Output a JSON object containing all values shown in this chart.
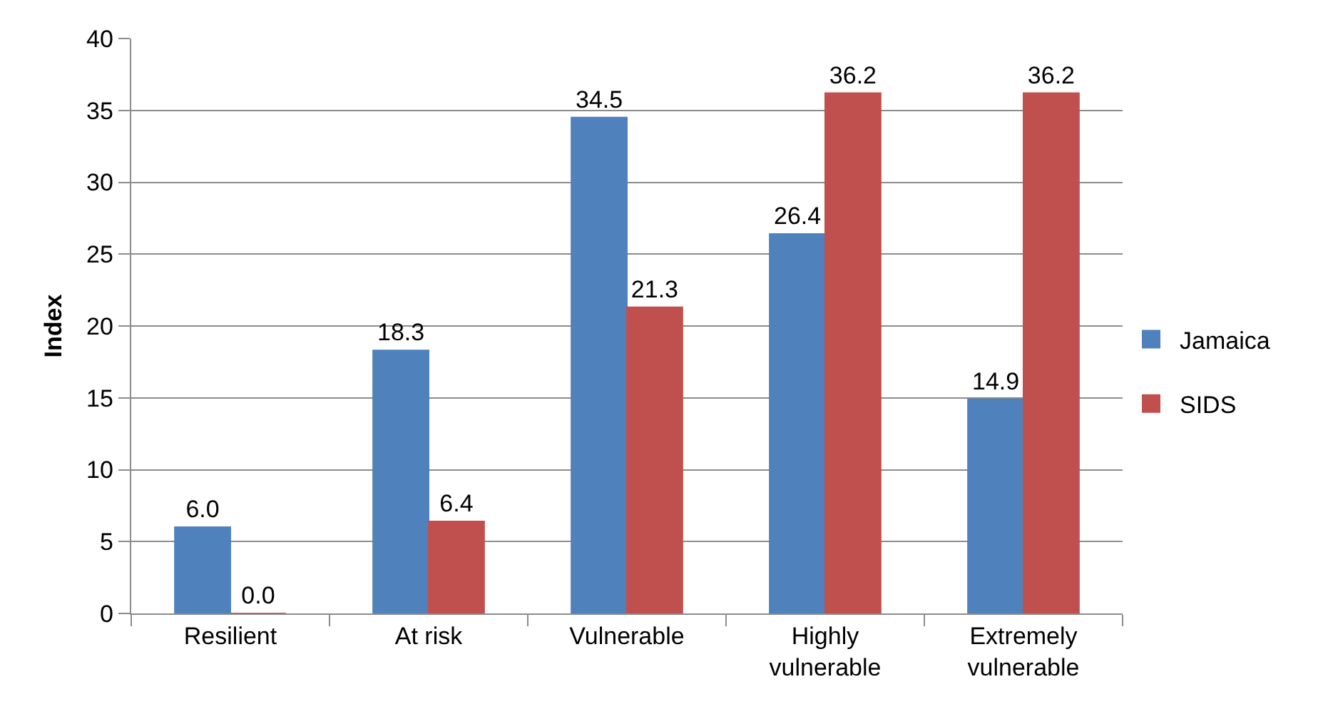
{
  "chart_data": {
    "type": "bar",
    "ylabel": "Index",
    "categories": [
      "Resilient",
      "At risk",
      "Vulnerable",
      "Highly vulnerable",
      "Extremely vulnerable"
    ],
    "series": [
      {
        "name": "Jamaica",
        "color": "#4f81bd",
        "values": [
          6.0,
          18.3,
          34.5,
          26.4,
          14.9
        ],
        "value_labels": [
          "6.0",
          "18.3",
          "34.5",
          "26.4",
          "14.9"
        ]
      },
      {
        "name": "SIDS",
        "color": "#c0504d",
        "values": [
          0.0,
          6.4,
          21.3,
          36.2,
          36.2
        ],
        "value_labels": [
          "0.0",
          "6.4",
          "21.3",
          "36.2",
          "36.2"
        ]
      }
    ],
    "ylim": [
      0,
      40
    ],
    "yticks": [
      0,
      5,
      10,
      15,
      20,
      25,
      30,
      35,
      40
    ],
    "grid": "y",
    "legend": "right"
  }
}
